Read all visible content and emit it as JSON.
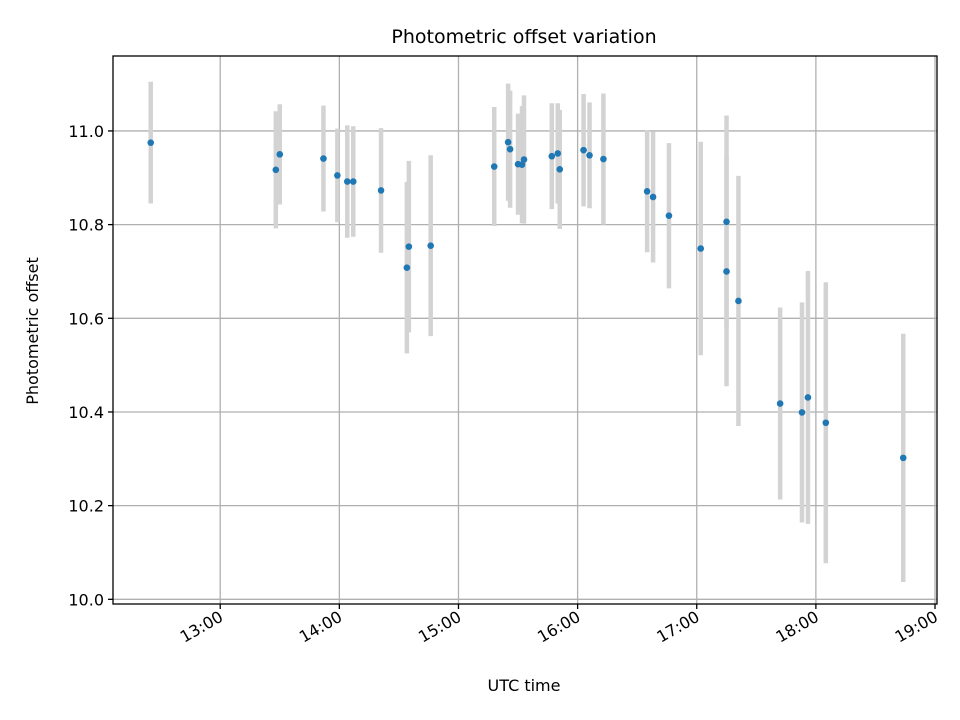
{
  "chart_data": {
    "type": "scatter",
    "title": "Photometric offset variation",
    "xlabel": "UTC time",
    "ylabel": "Photometric offset",
    "xlim": [
      "12:06",
      "19:01"
    ],
    "ylim": [
      9.99,
      11.16
    ],
    "grid": true,
    "x_ticks": [
      "13:00",
      "14:00",
      "15:00",
      "16:00",
      "17:00",
      "18:00",
      "19:00"
    ],
    "y_ticks": [
      "10.0",
      "10.2",
      "10.4",
      "10.6",
      "10.8",
      "11.0"
    ],
    "colors": {
      "points": "#1f77b4",
      "error_bars": "#d3d3d3",
      "grid": "#b0b0b0"
    },
    "points": [
      {
        "x": "12:25",
        "y": 10.975,
        "yerr": 0.13
      },
      {
        "x": "13:28",
        "y": 10.917,
        "yerr": 0.125
      },
      {
        "x": "13:30",
        "y": 10.95,
        "yerr": 0.107
      },
      {
        "x": "13:52",
        "y": 10.941,
        "yerr": 0.113
      },
      {
        "x": "13:59",
        "y": 10.905,
        "yerr": 0.1
      },
      {
        "x": "14:04",
        "y": 10.892,
        "yerr": 0.12
      },
      {
        "x": "14:07",
        "y": 10.892,
        "yerr": 0.118
      },
      {
        "x": "14:21",
        "y": 10.873,
        "yerr": 0.133
      },
      {
        "x": "14:34",
        "y": 10.708,
        "yerr": 0.183
      },
      {
        "x": "14:35",
        "y": 10.753,
        "yerr": 0.183
      },
      {
        "x": "14:46",
        "y": 10.755,
        "yerr": 0.193
      },
      {
        "x": "15:18",
        "y": 10.924,
        "yerr": 0.127
      },
      {
        "x": "15:25",
        "y": 10.976,
        "yerr": 0.125
      },
      {
        "x": "15:26",
        "y": 10.961,
        "yerr": 0.125
      },
      {
        "x": "15:30",
        "y": 10.929,
        "yerr": 0.108
      },
      {
        "x": "15:32",
        "y": 10.928,
        "yerr": 0.125
      },
      {
        "x": "15:33",
        "y": 10.939,
        "yerr": 0.137
      },
      {
        "x": "15:47",
        "y": 10.946,
        "yerr": 0.113
      },
      {
        "x": "15:50",
        "y": 10.952,
        "yerr": 0.107
      },
      {
        "x": "15:51",
        "y": 10.918,
        "yerr": 0.127
      },
      {
        "x": "16:03",
        "y": 10.959,
        "yerr": 0.12
      },
      {
        "x": "16:06",
        "y": 10.948,
        "yerr": 0.113
      },
      {
        "x": "16:13",
        "y": 10.94,
        "yerr": 0.14
      },
      {
        "x": "16:35",
        "y": 10.871,
        "yerr": 0.13
      },
      {
        "x": "16:38",
        "y": 10.859,
        "yerr": 0.14
      },
      {
        "x": "16:46",
        "y": 10.819,
        "yerr": 0.155
      },
      {
        "x": "17:02",
        "y": 10.749,
        "yerr": 0.228
      },
      {
        "x": "17:15",
        "y": 10.806,
        "yerr": 0.227
      },
      {
        "x": "17:15",
        "y": 10.7,
        "yerr": 0.245
      },
      {
        "x": "17:21",
        "y": 10.637,
        "yerr": 0.267
      },
      {
        "x": "17:42",
        "y": 10.418,
        "yerr": 0.205
      },
      {
        "x": "17:53",
        "y": 10.399,
        "yerr": 0.235
      },
      {
        "x": "17:56",
        "y": 10.431,
        "yerr": 0.27
      },
      {
        "x": "18:05",
        "y": 10.377,
        "yerr": 0.3
      },
      {
        "x": "18:44",
        "y": 10.302,
        "yerr": 0.265
      }
    ]
  }
}
